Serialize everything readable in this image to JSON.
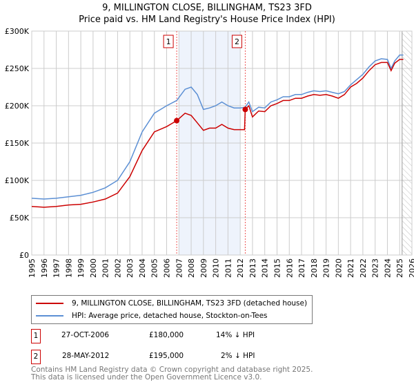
{
  "title": {
    "line1": "9, MILLINGTON CLOSE, BILLINGHAM, TS23 3FD",
    "line2": "Price paid vs. HM Land Registry's House Price Index (HPI)"
  },
  "colors": {
    "property": "#cc0000",
    "hpi": "#5b8fd4",
    "shade": "#eef3fc"
  },
  "legend": {
    "property": "9, MILLINGTON CLOSE, BILLINGHAM, TS23 3FD (detached house)",
    "hpi": "HPI: Average price, detached house, Stockton-on-Tees"
  },
  "sales": [
    {
      "num": "1",
      "date": "27-OCT-2006",
      "price": "£180,000",
      "delta": "14% ↓ HPI"
    },
    {
      "num": "2",
      "date": "28-MAY-2012",
      "price": "£195,000",
      "delta": "2% ↓ HPI"
    }
  ],
  "footer": {
    "line1": "Contains HM Land Registry data © Crown copyright and database right 2025.",
    "line2": "This data is licensed under the Open Government Licence v3.0."
  },
  "chart_data": {
    "type": "line",
    "xlim": [
      1995,
      2026
    ],
    "ylim": [
      0,
      300000
    ],
    "xticks": [
      "1995",
      "1996",
      "1997",
      "1998",
      "1999",
      "2000",
      "2001",
      "2002",
      "2003",
      "2004",
      "2005",
      "2006",
      "2007",
      "2008",
      "2009",
      "2010",
      "2011",
      "2012",
      "2013",
      "2014",
      "2015",
      "2016",
      "2017",
      "2018",
      "2019",
      "2020",
      "2021",
      "2022",
      "2023",
      "2024",
      "2025",
      "2026"
    ],
    "yticks": [
      {
        "v": 0,
        "label": "£0"
      },
      {
        "v": 50000,
        "label": "£50K"
      },
      {
        "v": 100000,
        "label": "£100K"
      },
      {
        "v": 150000,
        "label": "£150K"
      },
      {
        "v": 200000,
        "label": "£200K"
      },
      {
        "v": 250000,
        "label": "£250K"
      },
      {
        "v": 300000,
        "label": "£300K"
      }
    ],
    "shaded_range": [
      2007.0,
      2012.0
    ],
    "hatched_from": 2025.2,
    "markers": [
      {
        "label": "1",
        "x": 2006.82,
        "y": 180000
      },
      {
        "label": "2",
        "x": 2012.41,
        "y": 195000
      }
    ],
    "series": [
      {
        "name": "property",
        "x": [
          1995,
          1996,
          1997,
          1998,
          1999,
          2000,
          2001,
          2002,
          2003,
          2004,
          2005,
          2006,
          2006.82,
          2007.5,
          2008,
          2008.5,
          2009,
          2009.5,
          2010,
          2010.5,
          2011,
          2011.5,
          2012.35,
          2012.41,
          2012.7,
          2013,
          2013.5,
          2014,
          2014.5,
          2015,
          2015.5,
          2016,
          2016.5,
          2017,
          2017.5,
          2018,
          2018.5,
          2019,
          2019.5,
          2020,
          2020.5,
          2021,
          2021.5,
          2022,
          2022.5,
          2023,
          2023.5,
          2024,
          2024.3,
          2024.6,
          2025,
          2025.3
        ],
        "values": [
          65000,
          64000,
          65000,
          67000,
          68000,
          71000,
          75000,
          83000,
          105000,
          140000,
          165000,
          172000,
          180000,
          190000,
          187000,
          177000,
          167000,
          170000,
          170000,
          175000,
          170000,
          168000,
          168000,
          195000,
          200000,
          185000,
          193000,
          192000,
          200000,
          203000,
          207000,
          207000,
          210000,
          210000,
          213000,
          215000,
          214000,
          215000,
          213000,
          210000,
          215000,
          225000,
          230000,
          237000,
          247000,
          255000,
          258000,
          258000,
          247000,
          257000,
          262000,
          262000
        ]
      },
      {
        "name": "hpi",
        "x": [
          1995,
          1996,
          1997,
          1998,
          1999,
          2000,
          2001,
          2002,
          2003,
          2004,
          2005,
          2006,
          2006.82,
          2007.5,
          2008,
          2008.5,
          2009,
          2009.5,
          2010,
          2010.5,
          2011,
          2011.5,
          2012,
          2012.4,
          2012.7,
          2013,
          2013.5,
          2014,
          2014.5,
          2015,
          2015.5,
          2016,
          2016.5,
          2017,
          2017.5,
          2018,
          2018.5,
          2019,
          2019.5,
          2020,
          2020.5,
          2021,
          2021.5,
          2022,
          2022.5,
          2023,
          2023.5,
          2024,
          2024.3,
          2024.6,
          2025,
          2025.3
        ],
        "values": [
          76000,
          75000,
          76000,
          78000,
          80000,
          84000,
          90000,
          100000,
          125000,
          165000,
          190000,
          200000,
          207000,
          222000,
          225000,
          215000,
          195000,
          197000,
          200000,
          205000,
          200000,
          197000,
          197000,
          198000,
          205000,
          192000,
          198000,
          197000,
          205000,
          208000,
          212000,
          212000,
          215000,
          215000,
          218000,
          220000,
          219000,
          220000,
          218000,
          216000,
          219000,
          228000,
          235000,
          242000,
          252000,
          260000,
          263000,
          262000,
          250000,
          260000,
          268000,
          268000
        ]
      }
    ]
  }
}
